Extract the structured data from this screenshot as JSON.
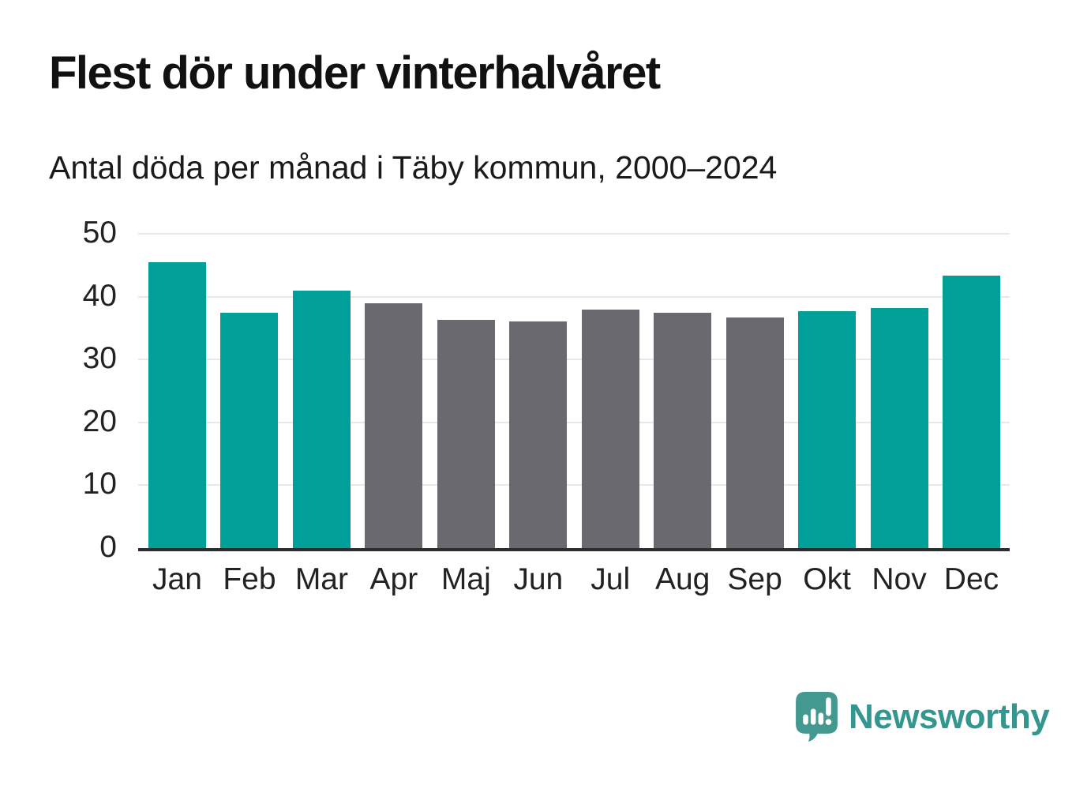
{
  "header": {
    "title": "Flest dör under vinterhalvåret",
    "subtitle": "Antal döda per månad i Täby kommun, 2000–2024"
  },
  "chart_data": {
    "type": "bar",
    "title": "Flest dör under vinterhalvåret",
    "subtitle": "Antal döda per månad i Täby kommun, 2000–2024",
    "categories": [
      "Jan",
      "Feb",
      "Mar",
      "Apr",
      "Maj",
      "Jun",
      "Jul",
      "Aug",
      "Sep",
      "Okt",
      "Nov",
      "Dec"
    ],
    "values": [
      45.5,
      37.4,
      40.9,
      38.9,
      36.3,
      36.0,
      38.0,
      37.4,
      36.7,
      37.7,
      38.2,
      43.4
    ],
    "seasons": [
      "winter",
      "winter",
      "winter",
      "summer",
      "summer",
      "summer",
      "summer",
      "summer",
      "summer",
      "winter",
      "winter",
      "winter"
    ],
    "colors": {
      "winter": "#00a099",
      "summer": "#6b6970"
    },
    "xlabel": "",
    "ylabel": "",
    "ylim": [
      0,
      50
    ],
    "yticks": [
      0,
      10,
      20,
      30,
      40,
      50
    ],
    "grid": "horizontal gridlines on",
    "legend": "none",
    "axis_color": "#2d2d2d",
    "gridline_color": "#e8e8e8"
  },
  "footer": {
    "brand": "Newsworthy",
    "logo_color": "#43988f",
    "wordmark_color": "#33968f"
  }
}
